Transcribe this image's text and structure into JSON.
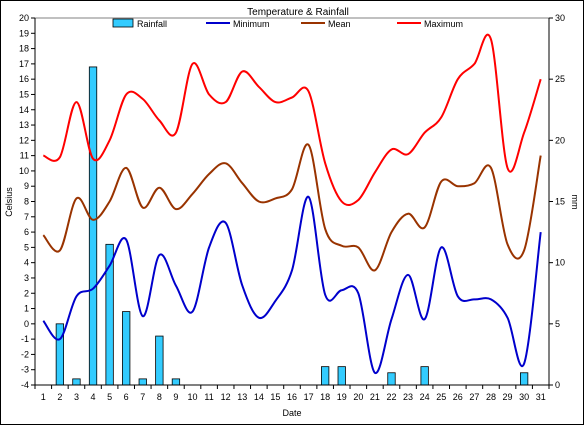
{
  "chart_data": {
    "type": "bar+line",
    "title": "Temperature & Rainfall",
    "xlabel": "Date",
    "ylabel_left": "Celsius",
    "ylabel_right": "mm",
    "ylim_left": [
      -4,
      20
    ],
    "ylim_right": [
      0,
      30
    ],
    "yticks_left": [
      -4,
      -3,
      -2,
      -1,
      0,
      1,
      2,
      3,
      4,
      5,
      6,
      7,
      8,
      9,
      10,
      11,
      12,
      13,
      14,
      15,
      16,
      17,
      18,
      19,
      20
    ],
    "yticks_right": [
      0,
      5,
      10,
      15,
      20,
      25,
      30
    ],
    "categories": [
      "1",
      "2",
      "3",
      "4",
      "5",
      "6",
      "7",
      "8",
      "9",
      "10",
      "11",
      "12",
      "13",
      "14",
      "15",
      "16",
      "17",
      "18",
      "19",
      "20",
      "21",
      "22",
      "23",
      "24",
      "25",
      "26",
      "27",
      "28",
      "29",
      "30",
      "31"
    ],
    "rainfall": {
      "name": "Rainfall",
      "color": "#33ccff",
      "values": [
        0,
        5,
        0.5,
        26,
        11.5,
        6,
        0.5,
        4,
        0.5,
        0,
        0,
        0,
        0,
        0,
        0,
        0,
        0,
        1.5,
        1.5,
        0,
        0,
        1,
        0,
        1.5,
        0,
        0,
        0,
        0,
        0,
        1,
        0
      ]
    },
    "series": [
      {
        "name": "Minimum",
        "color": "#0000cc",
        "values": [
          0.2,
          -1.0,
          1.8,
          2.3,
          3.8,
          5.5,
          0.5,
          4.5,
          2.5,
          0.8,
          5.0,
          6.6,
          2.5,
          0.4,
          1.5,
          3.5,
          8.3,
          1.9,
          2.2,
          2.0,
          -3.2,
          0.3,
          3.2,
          0.3,
          5.0,
          1.8,
          1.6,
          1.6,
          0.4,
          -2.6,
          6.0
        ]
      },
      {
        "name": "Mean",
        "color": "#993300",
        "values": [
          5.8,
          4.8,
          8.2,
          6.8,
          8.0,
          10.2,
          7.6,
          8.9,
          7.5,
          8.5,
          9.8,
          10.5,
          9.2,
          8.0,
          8.2,
          8.8,
          11.7,
          6.2,
          5.1,
          5.0,
          3.5,
          6.0,
          7.2,
          6.3,
          9.3,
          9.0,
          9.2,
          10.2,
          5.2,
          4.8,
          11.0
        ]
      },
      {
        "name": "Maximum",
        "color": "#ff0000",
        "values": [
          11.0,
          10.9,
          14.5,
          10.8,
          12.0,
          15.0,
          14.7,
          13.3,
          12.5,
          17.0,
          15.0,
          14.5,
          16.5,
          15.5,
          14.5,
          14.8,
          15.2,
          10.5,
          8.0,
          8.1,
          9.9,
          11.4,
          11.1,
          12.5,
          13.5,
          16.0,
          17.0,
          18.6,
          10.2,
          12.5,
          16.0
        ]
      }
    ],
    "legend_position": "top",
    "grid": false
  }
}
